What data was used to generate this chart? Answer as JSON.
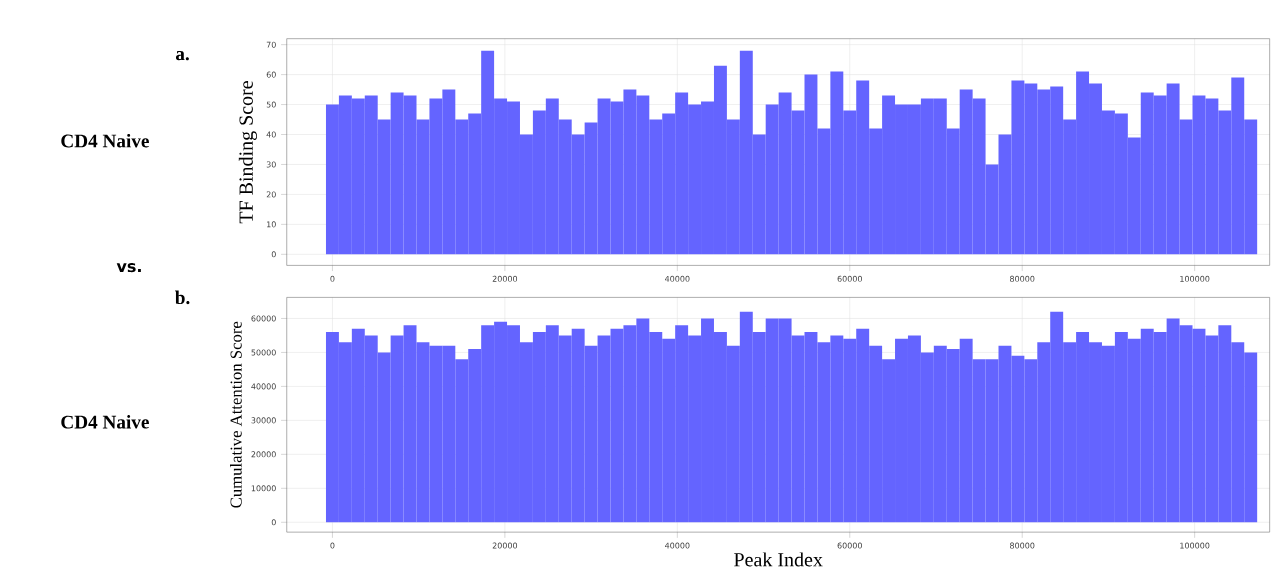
{
  "chart_data": [
    {
      "type": "bar",
      "ylabel": "TF Binding Score",
      "color": "#6464ff",
      "grid": true,
      "annotations": [
        "a.",
        "CD4 Naive",
        "vs."
      ],
      "xlim": [
        -5300,
        108700
      ],
      "xticks": [
        0,
        20000,
        40000,
        60000,
        80000,
        100000
      ],
      "ylim": [
        -3.7,
        72
      ],
      "yticks": [
        0,
        10,
        20,
        30,
        40,
        50,
        60,
        70
      ],
      "x": [
        0,
        1500,
        3000,
        4500,
        6000,
        7500,
        9000,
        10500,
        12000,
        13500,
        15000,
        16500,
        18000,
        19500,
        21000,
        22500,
        24000,
        25500,
        27000,
        28500,
        30000,
        31500,
        33000,
        34500,
        36000,
        37500,
        39000,
        40500,
        42000,
        43500,
        45000,
        46500,
        48000,
        49500,
        51000,
        52500,
        54000,
        55500,
        57000,
        58500,
        60000,
        61500,
        63000,
        64500,
        66000,
        67500,
        69000,
        70500,
        72000,
        73500,
        75000,
        76500,
        78000,
        79500,
        81000,
        82500,
        84000,
        85500,
        87000,
        88500,
        90000,
        91500,
        93000,
        94500,
        96000,
        97500,
        99000,
        100500,
        102000,
        103500,
        105000,
        106500
      ],
      "values": [
        50,
        53,
        52,
        53,
        45,
        54,
        53,
        45,
        52,
        55,
        45,
        47,
        68,
        52,
        51,
        40,
        48,
        52,
        45,
        40,
        44,
        52,
        51,
        55,
        53,
        45,
        47,
        54,
        50,
        51,
        63,
        45,
        68,
        40,
        50,
        54,
        48,
        60,
        42,
        61,
        48,
        58,
        42,
        53,
        50,
        50,
        52,
        52,
        42,
        55,
        52,
        30,
        40,
        58,
        57,
        55,
        56,
        45,
        61,
        57,
        48,
        47,
        39,
        54,
        53,
        57,
        45,
        53,
        52,
        48,
        59,
        45
      ]
    },
    {
      "type": "bar",
      "ylabel": "Cumulative Attention Score",
      "xlabel": "Peak Index",
      "color": "#6464ff",
      "grid": true,
      "annotations": [
        "b.",
        "CD4 Naive"
      ],
      "xlim": [
        -5300,
        108700
      ],
      "xticks": [
        0,
        20000,
        40000,
        60000,
        80000,
        100000
      ],
      "ylim": [
        -2900,
        66200
      ],
      "yticks": [
        0,
        10000,
        20000,
        30000,
        40000,
        50000,
        60000
      ],
      "x": [
        0,
        1500,
        3000,
        4500,
        6000,
        7500,
        9000,
        10500,
        12000,
        13500,
        15000,
        16500,
        18000,
        19500,
        21000,
        22500,
        24000,
        25500,
        27000,
        28500,
        30000,
        31500,
        33000,
        34500,
        36000,
        37500,
        39000,
        40500,
        42000,
        43500,
        45000,
        46500,
        48000,
        49500,
        51000,
        52500,
        54000,
        55500,
        57000,
        58500,
        60000,
        61500,
        63000,
        64500,
        66000,
        67500,
        69000,
        70500,
        72000,
        73500,
        75000,
        76500,
        78000,
        79500,
        81000,
        82500,
        84000,
        85500,
        87000,
        88500,
        90000,
        91500,
        93000,
        94500,
        96000,
        97500,
        99000,
        100500,
        102000,
        103500,
        105000,
        106500
      ],
      "values": [
        56000,
        53000,
        57000,
        55000,
        50000,
        55000,
        58000,
        53000,
        52000,
        52000,
        48000,
        51000,
        58000,
        59000,
        58000,
        53000,
        56000,
        58000,
        55000,
        57000,
        52000,
        55000,
        57000,
        58000,
        60000,
        56000,
        54000,
        58000,
        55000,
        60000,
        56000,
        52000,
        62000,
        56000,
        60000,
        60000,
        55000,
        56000,
        53000,
        55000,
        54000,
        57000,
        52000,
        48000,
        54000,
        55000,
        50000,
        52000,
        51000,
        54000,
        48000,
        48000,
        52000,
        49000,
        48000,
        53000,
        62000,
        53000,
        56000,
        53000,
        52000,
        56000,
        54000,
        57000,
        56000,
        60000,
        58000,
        57000,
        55000,
        58000,
        53000,
        50000
      ]
    }
  ]
}
